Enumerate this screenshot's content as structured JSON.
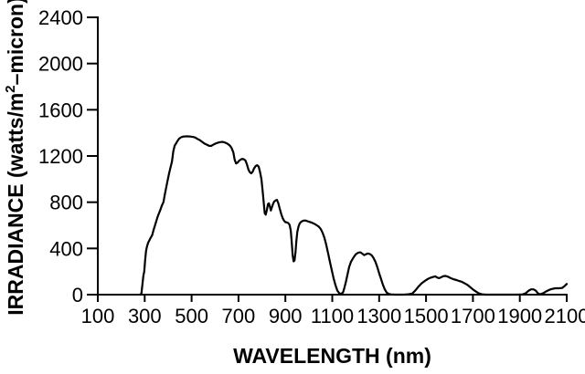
{
  "figure": {
    "background": "#ffffff",
    "line_color": "#000000"
  },
  "chart_data": {
    "type": "line",
    "title": "",
    "xlabel": "WAVELENGTH (nm)",
    "ylabel": "IRRADIANCE (watts/m²–micron)",
    "ylabel_parts": {
      "prefix": "IRRADIANCE (watts/m",
      "sup": "2",
      "suffix": "–micron)"
    },
    "xlim": [
      100,
      2100
    ],
    "ylim": [
      0,
      2400
    ],
    "x_ticks": [
      100,
      300,
      500,
      700,
      900,
      1100,
      1300,
      1500,
      1700,
      1900,
      2100
    ],
    "y_ticks": [
      0,
      400,
      800,
      1200,
      1600,
      2000,
      2400
    ],
    "grid": false,
    "legend": "none",
    "points": [
      [
        280,
        0
      ],
      [
        286,
        10
      ],
      [
        290,
        80
      ],
      [
        294,
        160
      ],
      [
        298,
        200
      ],
      [
        302,
        300
      ],
      [
        306,
        380
      ],
      [
        310,
        420
      ],
      [
        315,
        450
      ],
      [
        320,
        470
      ],
      [
        326,
        495
      ],
      [
        332,
        515
      ],
      [
        338,
        560
      ],
      [
        344,
        600
      ],
      [
        350,
        640
      ],
      [
        356,
        680
      ],
      [
        362,
        710
      ],
      [
        368,
        740
      ],
      [
        374,
        775
      ],
      [
        380,
        800
      ],
      [
        386,
        870
      ],
      [
        392,
        930
      ],
      [
        398,
        990
      ],
      [
        404,
        1050
      ],
      [
        410,
        1100
      ],
      [
        416,
        1150
      ],
      [
        422,
        1240
      ],
      [
        428,
        1290
      ],
      [
        434,
        1310
      ],
      [
        440,
        1330
      ],
      [
        447,
        1350
      ],
      [
        455,
        1362
      ],
      [
        465,
        1368
      ],
      [
        475,
        1370
      ],
      [
        485,
        1370
      ],
      [
        495,
        1368
      ],
      [
        505,
        1365
      ],
      [
        515,
        1360
      ],
      [
        525,
        1348
      ],
      [
        535,
        1337
      ],
      [
        545,
        1322
      ],
      [
        555,
        1307
      ],
      [
        565,
        1298
      ],
      [
        575,
        1288
      ],
      [
        583,
        1287
      ],
      [
        592,
        1297
      ],
      [
        602,
        1307
      ],
      [
        612,
        1315
      ],
      [
        622,
        1320
      ],
      [
        632,
        1322
      ],
      [
        642,
        1317
      ],
      [
        652,
        1307
      ],
      [
        662,
        1292
      ],
      [
        670,
        1272
      ],
      [
        678,
        1230
      ],
      [
        684,
        1165
      ],
      [
        690,
        1135
      ],
      [
        696,
        1142
      ],
      [
        703,
        1160
      ],
      [
        710,
        1170
      ],
      [
        717,
        1175
      ],
      [
        724,
        1170
      ],
      [
        730,
        1160
      ],
      [
        736,
        1128
      ],
      [
        742,
        1085
      ],
      [
        748,
        1060
      ],
      [
        754,
        1050
      ],
      [
        760,
        1062
      ],
      [
        766,
        1090
      ],
      [
        773,
        1112
      ],
      [
        780,
        1120
      ],
      [
        786,
        1108
      ],
      [
        792,
        1060
      ],
      [
        798,
        1000
      ],
      [
        803,
        900
      ],
      [
        808,
        790
      ],
      [
        812,
        705
      ],
      [
        816,
        692
      ],
      [
        821,
        730
      ],
      [
        826,
        785
      ],
      [
        830,
        790
      ],
      [
        834,
        760
      ],
      [
        838,
        728
      ],
      [
        842,
        752
      ],
      [
        847,
        782
      ],
      [
        852,
        805
      ],
      [
        858,
        815
      ],
      [
        864,
        820
      ],
      [
        870,
        790
      ],
      [
        876,
        745
      ],
      [
        882,
        700
      ],
      [
        888,
        665
      ],
      [
        894,
        640
      ],
      [
        900,
        628
      ],
      [
        906,
        625
      ],
      [
        912,
        620
      ],
      [
        918,
        605
      ],
      [
        923,
        555
      ],
      [
        927,
        460
      ],
      [
        931,
        340
      ],
      [
        935,
        288
      ],
      [
        939,
        295
      ],
      [
        943,
        360
      ],
      [
        947,
        470
      ],
      [
        951,
        545
      ],
      [
        956,
        590
      ],
      [
        961,
        615
      ],
      [
        967,
        630
      ],
      [
        974,
        638
      ],
      [
        981,
        642
      ],
      [
        988,
        640
      ],
      [
        995,
        635
      ],
      [
        1002,
        630
      ],
      [
        1010,
        625
      ],
      [
        1018,
        618
      ],
      [
        1026,
        610
      ],
      [
        1034,
        600
      ],
      [
        1042,
        590
      ],
      [
        1050,
        570
      ],
      [
        1058,
        540
      ],
      [
        1066,
        495
      ],
      [
        1074,
        435
      ],
      [
        1082,
        360
      ],
      [
        1090,
        285
      ],
      [
        1098,
        210
      ],
      [
        1106,
        140
      ],
      [
        1114,
        80
      ],
      [
        1122,
        35
      ],
      [
        1130,
        12
      ],
      [
        1138,
        6
      ],
      [
        1146,
        20
      ],
      [
        1152,
        60
      ],
      [
        1158,
        110
      ],
      [
        1164,
        165
      ],
      [
        1172,
        240
      ],
      [
        1180,
        285
      ],
      [
        1190,
        320
      ],
      [
        1200,
        348
      ],
      [
        1210,
        362
      ],
      [
        1220,
        366
      ],
      [
        1228,
        355
      ],
      [
        1236,
        342
      ],
      [
        1244,
        350
      ],
      [
        1252,
        356
      ],
      [
        1260,
        352
      ],
      [
        1268,
        340
      ],
      [
        1276,
        318
      ],
      [
        1284,
        285
      ],
      [
        1292,
        240
      ],
      [
        1300,
        185
      ],
      [
        1308,
        135
      ],
      [
        1316,
        85
      ],
      [
        1324,
        45
      ],
      [
        1332,
        18
      ],
      [
        1340,
        6
      ],
      [
        1350,
        2
      ],
      [
        1365,
        0
      ],
      [
        1385,
        0
      ],
      [
        1405,
        0
      ],
      [
        1425,
        3
      ],
      [
        1442,
        10
      ],
      [
        1455,
        38
      ],
      [
        1468,
        70
      ],
      [
        1481,
        98
      ],
      [
        1494,
        118
      ],
      [
        1507,
        135
      ],
      [
        1520,
        147
      ],
      [
        1532,
        155
      ],
      [
        1540,
        158
      ],
      [
        1548,
        148
      ],
      [
        1556,
        143
      ],
      [
        1564,
        150
      ],
      [
        1574,
        160
      ],
      [
        1584,
        162
      ],
      [
        1594,
        155
      ],
      [
        1606,
        142
      ],
      [
        1618,
        133
      ],
      [
        1630,
        126
      ],
      [
        1642,
        118
      ],
      [
        1654,
        110
      ],
      [
        1666,
        96
      ],
      [
        1678,
        82
      ],
      [
        1690,
        62
      ],
      [
        1702,
        42
      ],
      [
        1714,
        25
      ],
      [
        1726,
        10
      ],
      [
        1738,
        3
      ],
      [
        1752,
        0
      ],
      [
        1775,
        0
      ],
      [
        1800,
        0
      ],
      [
        1830,
        0
      ],
      [
        1860,
        0
      ],
      [
        1890,
        0
      ],
      [
        1912,
        2
      ],
      [
        1925,
        12
      ],
      [
        1938,
        35
      ],
      [
        1948,
        46
      ],
      [
        1958,
        46
      ],
      [
        1968,
        35
      ],
      [
        1976,
        14
      ],
      [
        1984,
        5
      ],
      [
        1992,
        6
      ],
      [
        2002,
        15
      ],
      [
        2014,
        30
      ],
      [
        2026,
        42
      ],
      [
        2038,
        50
      ],
      [
        2052,
        55
      ],
      [
        2066,
        55
      ],
      [
        2080,
        58
      ],
      [
        2090,
        72
      ],
      [
        2100,
        92
      ]
    ]
  }
}
